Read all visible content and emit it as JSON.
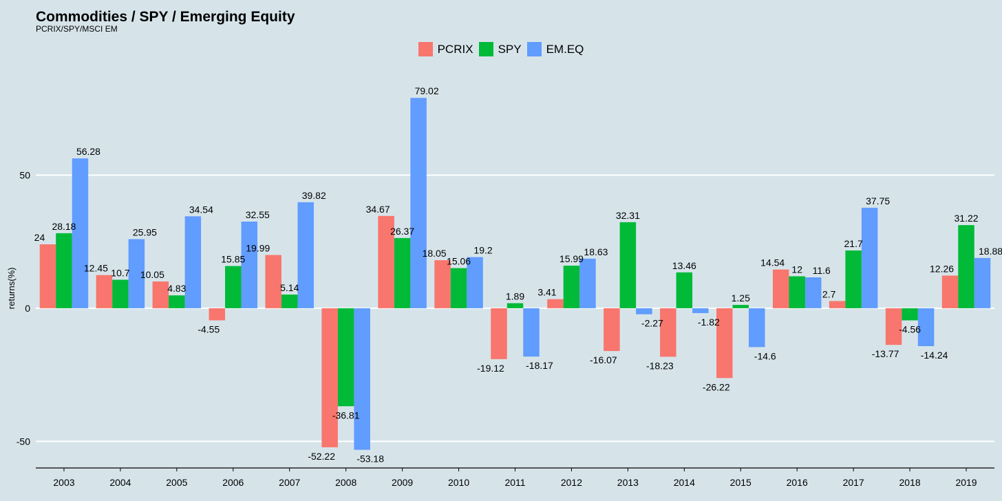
{
  "chart_data": {
    "type": "bar",
    "title": "Commodities / SPY / Emerging Equity",
    "subtitle": "PCRIX/SPY/MSCI EM",
    "xlabel": "",
    "ylabel": "returns(%)",
    "ylim": [
      -60,
      92
    ],
    "yticks": [
      -50,
      0,
      50
    ],
    "grid": true,
    "legend_position": "top",
    "categories": [
      "2003",
      "2004",
      "2005",
      "2006",
      "2007",
      "2008",
      "2009",
      "2010",
      "2011",
      "2012",
      "2013",
      "2014",
      "2015",
      "2016",
      "2017",
      "2018",
      "2019"
    ],
    "series": [
      {
        "name": "PCRIX",
        "color": "#f8766d",
        "values": [
          24,
          12.45,
          10.05,
          -4.55,
          20,
          -52.22,
          34.67,
          18.05,
          -19.12,
          3.41,
          -16.07,
          -18.23,
          -26.22,
          14.54,
          2.7,
          -13.77,
          12.26
        ],
        "labels": [
          "24",
          "12.45",
          "10.05",
          "-4.55",
          "",
          "-52.22",
          "34.67",
          "18.05",
          "-19.12",
          "3.41",
          "-16.07",
          "-18.23",
          "-26.22",
          "14.54",
          "2.7",
          "-13.77",
          "12.26"
        ]
      },
      {
        "name": "SPY",
        "color": "#00ba38",
        "values": [
          28.18,
          10.7,
          4.83,
          15.85,
          5.14,
          -36.81,
          26.37,
          15.06,
          1.89,
          15.99,
          32.31,
          13.46,
          1.25,
          12,
          21.7,
          -4.56,
          31.22
        ],
        "labels": [
          "28.18",
          "10.7",
          "4.83",
          "15.85",
          "5.14",
          "-36.81",
          "26.37",
          "15.06",
          "1.89",
          "15.99",
          "32.31",
          "13.46",
          "1.25",
          "12",
          "21.7",
          "-4.56",
          "31.22"
        ]
      },
      {
        "name": "EM.EQ",
        "color": "#619cff",
        "values": [
          56.28,
          25.95,
          34.54,
          32.55,
          39.82,
          -53.18,
          79.02,
          19.2,
          -18.17,
          18.63,
          -2.27,
          -1.82,
          -14.6,
          11.6,
          37.75,
          -14.24,
          18.88
        ],
        "labels": [
          "56.28",
          "25.95",
          "34.54",
          "32.55",
          "39.82",
          "-53.18",
          "79.02",
          "19.2",
          "-18.17",
          "18.63",
          "-2.27",
          "-1.82",
          "-14.6",
          "11.6",
          "37.75",
          "-14.24",
          "18.88"
        ]
      }
    ],
    "extra_labels": [
      "19.99"
    ]
  }
}
